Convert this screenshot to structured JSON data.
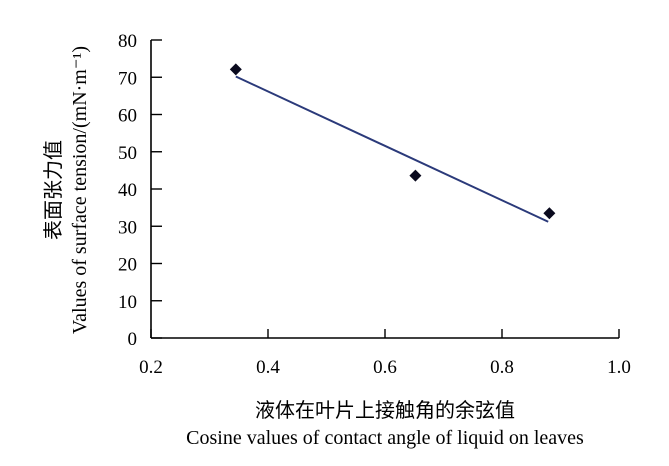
{
  "chart_data": {
    "type": "scatter",
    "title": "",
    "xlabel_cn": "液体在叶片上接触角的余弦值",
    "xlabel": "Cosine values of contact angle of liquid on leaves",
    "ylabel_cn": "表面张力值",
    "ylabel": "Values of surface tension/(mN·m⁻¹)",
    "xlim": [
      0.2,
      1.0
    ],
    "ylim": [
      0,
      80
    ],
    "xticks": [
      "0.2",
      "0.4",
      "0.6",
      "0.8",
      "1.0"
    ],
    "yticks": [
      "0",
      "10",
      "20",
      "30",
      "40",
      "50",
      "60",
      "70",
      "80"
    ],
    "grid": false,
    "points": [
      {
        "x": 0.345,
        "y": 72.1
      },
      {
        "x": 0.652,
        "y": 43.6
      },
      {
        "x": 0.881,
        "y": 33.5
      }
    ],
    "trendline": {
      "x": [
        0.345,
        0.879
      ],
      "y": [
        70.2,
        31.2
      ]
    },
    "colors": {
      "points": "#0a0a1e",
      "trendline": "#2b3a7a",
      "axes": "#000000"
    }
  }
}
